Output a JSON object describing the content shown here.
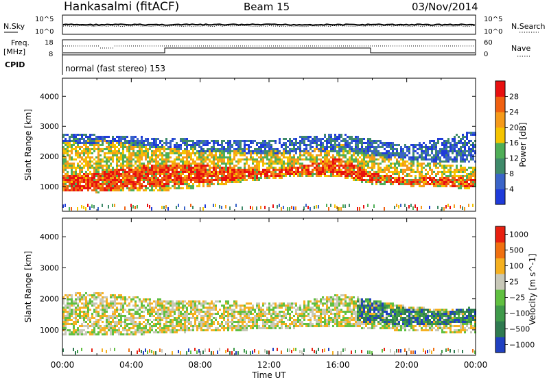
{
  "header": {
    "radar": "Hankasalmi (fitACF)",
    "beam": "Beam 15",
    "date": "03/Nov/2014"
  },
  "noise_panel": {
    "left_label": "N.Sky",
    "right_label": "N.Search",
    "left_ticks": [
      "10^5",
      "10^0"
    ],
    "right_ticks": [
      "10^5",
      "10^0"
    ]
  },
  "freq_panel": {
    "left_label_1": "Freq.",
    "left_label_2": "[MHz]",
    "right_label": "Nave",
    "left_ticks": [
      "18",
      "8"
    ],
    "right_ticks": [
      "60",
      "0"
    ]
  },
  "cpid": {
    "label": "CPID",
    "text": "normal (fast stereo) 153"
  },
  "chart_data": [
    {
      "type": "heatmap",
      "panel": "power",
      "ylabel": "Slant Range [km]",
      "ylim": [
        180,
        4600
      ],
      "y_ticks": [
        1000,
        2000,
        3000,
        4000
      ],
      "xlim": [
        "00:00",
        "24:00"
      ],
      "colorbar_label": "Power [dB]",
      "colorbar_ticks": [
        "4",
        "8",
        "12",
        "16",
        "20",
        "24",
        "28"
      ],
      "colors": [
        "#1f3bd9",
        "#3a64c8",
        "#3f8a6a",
        "#4fae57",
        "#f5c400",
        "#f59a1a",
        "#f06010",
        "#e81010"
      ],
      "bands": [
        {
          "name": "main",
          "x": [
            0,
            2,
            4,
            6,
            8,
            10,
            12,
            14,
            16,
            18,
            20,
            22,
            24
          ],
          "lower": [
            850,
            840,
            880,
            900,
            1000,
            1150,
            1280,
            1380,
            1350,
            1100,
            1050,
            1000,
            950
          ],
          "upper": [
            2600,
            2650,
            2500,
            2350,
            2300,
            2300,
            2250,
            2300,
            2450,
            2200,
            1900,
            1800,
            1700
          ],
          "level": 4
        },
        {
          "name": "core",
          "x": [
            0,
            2,
            4,
            6,
            8,
            10,
            12,
            14,
            16,
            18,
            20,
            22,
            24
          ],
          "lower": [
            900,
            880,
            950,
            1050,
            1150,
            1250,
            1350,
            1450,
            1400,
            1150,
            1100,
            1050,
            1000
          ],
          "upper": [
            1400,
            1500,
            1700,
            1800,
            1750,
            1650,
            1600,
            1750,
            2000,
            1500,
            1300,
            1350,
            1300
          ],
          "level": 7
        },
        {
          "name": "upper",
          "x": [
            0,
            4,
            8,
            12,
            16,
            20,
            24
          ],
          "lower": [
            2500,
            2400,
            2200,
            2100,
            2200,
            1900,
            1800
          ],
          "upper": [
            2800,
            2700,
            2600,
            2600,
            2800,
            2400,
            2900
          ],
          "level": 1
        }
      ]
    },
    {
      "type": "heatmap",
      "panel": "velocity",
      "ylabel": "Slant Range [km]",
      "ylim": [
        180,
        4600
      ],
      "y_ticks": [
        1000,
        2000,
        3000,
        4000
      ],
      "xlim": [
        "00:00",
        "24:00"
      ],
      "xlabel": "Time UT",
      "x_ticks": [
        "00:00",
        "04:00",
        "08:00",
        "12:00",
        "16:00",
        "20:00",
        "00:00"
      ],
      "colorbar_label": "Velocity [m s^-1]",
      "colorbar_ticks": [
        "1000",
        "500",
        "100",
        "25",
        "−25",
        "−100",
        "−500",
        "−1000"
      ],
      "colors": [
        "#2040c0",
        "#2f7a50",
        "#3f9a4a",
        "#60c040",
        "#c8c8b8",
        "#f5b020",
        "#f07010",
        "#e82010"
      ],
      "bands": [
        {
          "name": "ground",
          "x": [
            0,
            2,
            4,
            6,
            8,
            10,
            12,
            14,
            16,
            18,
            20,
            22,
            24
          ],
          "lower": [
            850,
            840,
            880,
            900,
            1000,
            1000,
            1050,
            1100,
            1150,
            1050,
            1000,
            950,
            900
          ],
          "upper": [
            2200,
            2250,
            2100,
            2000,
            1950,
            1950,
            1900,
            1950,
            2200,
            2000,
            1800,
            1700,
            1650
          ],
          "level": 4
        },
        {
          "name": "east",
          "x": [
            17,
            18,
            19,
            20,
            21,
            22,
            23,
            24
          ],
          "lower": [
            1300,
            1250,
            1200,
            1150,
            1200,
            1200,
            1250,
            1300
          ],
          "upper": [
            2100,
            2000,
            1800,
            1750,
            1700,
            1600,
            1700,
            1800
          ],
          "level": 1
        }
      ]
    }
  ]
}
